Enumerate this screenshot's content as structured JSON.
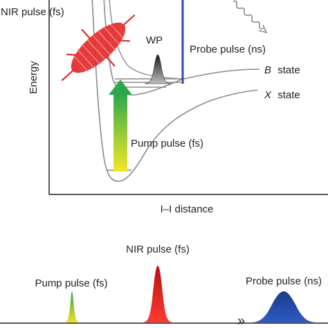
{
  "energy_diagram": {
    "y_axis_label": "Energy",
    "x_axis_label": "I–I distance",
    "nir_pulse_label": "NIR pulse (fs)",
    "wavepacket_label": "WP",
    "probe_pulse_label": "Probe pulse (ns)",
    "b_state_letter": "B",
    "b_state_word": "state",
    "x_state_letter": "X",
    "x_state_word": "state",
    "pump_pulse_label": "Pump pulse (fs)"
  },
  "pulse_sequence": {
    "pump_label": "Pump pulse (fs)",
    "nir_label": "NIR pulse (fs)",
    "probe_label": "Probe pulse (ns)",
    "delay_marker": "»"
  },
  "colors": {
    "axis": "#231f20",
    "curve": "#8a8a8a",
    "nir": "#e02b2b",
    "probe": "#2a4aa0",
    "pump_top": "#2fa84a",
    "pump_bottom": "#f2e22a",
    "wavepacket": "#2a2a2a"
  }
}
